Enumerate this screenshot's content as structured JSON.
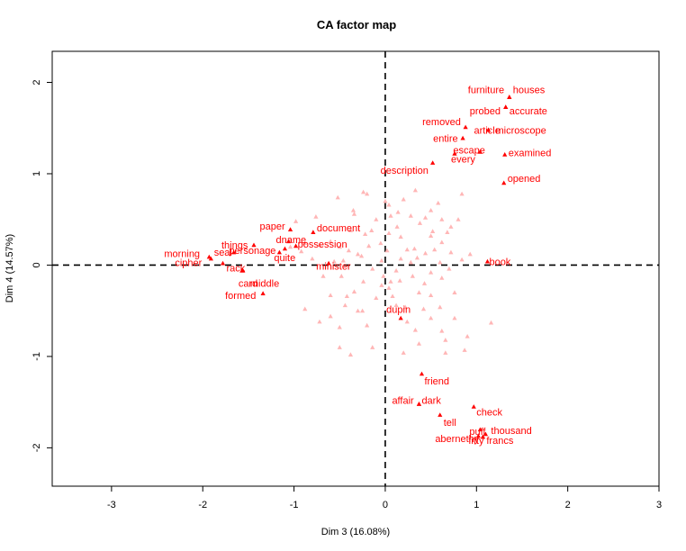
{
  "chart_data": {
    "type": "scatter",
    "title": "CA factor map",
    "xlabel": "Dim 3 (16.08%)",
    "ylabel": "Dim 4 (14.57%)",
    "xlim": [
      -3.65,
      3.0
    ],
    "ylim": [
      -2.42,
      2.34
    ],
    "xticks": [
      "-3",
      "-2",
      "-1",
      "0",
      "1",
      "2",
      "3"
    ],
    "xtick_values": [
      -3,
      -2,
      -1,
      0,
      1,
      2,
      3
    ],
    "yticks": [
      "-2",
      "-1",
      "0",
      "1",
      "2"
    ],
    "ytick_values": [
      -2,
      -1,
      0,
      1,
      2
    ],
    "reference_lines": {
      "x": 0,
      "y": 0,
      "style": "dashed"
    },
    "grid": false,
    "colors": {
      "labeled": "#ff0000",
      "unlabeled": "#ffb6b6",
      "axis": "#000000"
    },
    "marker": "triangle",
    "labeled_points": [
      {
        "label": "furniture",
        "x": 1.36,
        "y": 1.84
      },
      {
        "label": "houses",
        "x": 1.36,
        "y": 1.84
      },
      {
        "label": "probed",
        "x": 1.32,
        "y": 1.73
      },
      {
        "label": "accurate",
        "x": 1.32,
        "y": 1.73
      },
      {
        "label": "microscope",
        "x": 1.13,
        "y": 1.48
      },
      {
        "label": "removed",
        "x": 0.88,
        "y": 1.51
      },
      {
        "label": "article",
        "x": 1.13,
        "y": 1.48
      },
      {
        "label": "entire",
        "x": 0.85,
        "y": 1.39
      },
      {
        "label": "escape",
        "x": 1.04,
        "y": 1.24
      },
      {
        "label": "examined",
        "x": 1.31,
        "y": 1.21
      },
      {
        "label": "every",
        "x": 0.76,
        "y": 1.22
      },
      {
        "label": "description",
        "x": 0.52,
        "y": 1.12
      },
      {
        "label": "opened",
        "x": 1.3,
        "y": 0.9
      },
      {
        "label": "paper",
        "x": -1.04,
        "y": 0.39
      },
      {
        "label": "document",
        "x": -0.79,
        "y": 0.36
      },
      {
        "label": "things",
        "x": -1.44,
        "y": 0.22
      },
      {
        "label": "dname",
        "x": -1.06,
        "y": 0.26
      },
      {
        "label": "possession",
        "x": -0.98,
        "y": 0.21
      },
      {
        "label": "morning",
        "x": -1.93,
        "y": 0.09
      },
      {
        "label": "seal",
        "x": -1.66,
        "y": 0.14
      },
      {
        "label": "personage",
        "x": -1.1,
        "y": 0.18
      },
      {
        "label": "quite",
        "x": -1.16,
        "y": 0.14
      },
      {
        "label": "cipher",
        "x": -1.91,
        "y": 0.07
      },
      {
        "label": "rack",
        "x": -1.78,
        "y": 0.02
      },
      {
        "label": "minister",
        "x": -0.62,
        "y": 0.02
      },
      {
        "label": "card",
        "x": -1.57,
        "y": -0.06
      },
      {
        "label": "middle",
        "x": -1.56,
        "y": -0.06
      },
      {
        "label": "formed",
        "x": -1.34,
        "y": -0.31
      },
      {
        "label": "book",
        "x": 1.12,
        "y": 0.04
      },
      {
        "label": "dupin",
        "x": 0.17,
        "y": -0.58
      },
      {
        "label": "friend",
        "x": 0.4,
        "y": -1.19
      },
      {
        "label": "affair",
        "x": 0.37,
        "y": -1.52
      },
      {
        "label": "dark",
        "x": 0.37,
        "y": -1.52
      },
      {
        "label": "check",
        "x": 0.97,
        "y": -1.55
      },
      {
        "label": "tell",
        "x": 0.6,
        "y": -1.64
      },
      {
        "label": "puff",
        "x": 1.04,
        "y": -1.8
      },
      {
        "label": "thousand",
        "x": 1.1,
        "y": -1.85
      },
      {
        "label": "abernethy",
        "x": 1.02,
        "y": -1.87
      },
      {
        "label": "fifty",
        "x": 1.07,
        "y": -1.88
      },
      {
        "label": "francs",
        "x": 1.07,
        "y": -1.88
      }
    ],
    "unlabeled_points": [
      [
        -0.52,
        0.74
      ],
      [
        -0.24,
        0.8
      ],
      [
        -0.2,
        0.78
      ],
      [
        0.04,
        0.66
      ],
      [
        0.2,
        0.72
      ],
      [
        0.33,
        0.82
      ],
      [
        0.84,
        0.78
      ],
      [
        0.5,
        0.6
      ],
      [
        0.44,
        0.52
      ],
      [
        0.06,
        0.54
      ],
      [
        -0.1,
        0.5
      ],
      [
        -0.15,
        0.38
      ],
      [
        -0.98,
        0.48
      ],
      [
        -1.04,
        0.2
      ],
      [
        -0.76,
        0.53
      ],
      [
        -0.34,
        0.56
      ],
      [
        -0.22,
        0.34
      ],
      [
        0.38,
        0.46
      ],
      [
        0.62,
        0.5
      ],
      [
        0.72,
        0.42
      ],
      [
        0.62,
        0.25
      ],
      [
        0.68,
        0.36
      ],
      [
        0.8,
        0.5
      ],
      [
        -0.18,
        0.21
      ],
      [
        -0.05,
        0.24
      ],
      [
        -0.3,
        0.12
      ],
      [
        -0.88,
        0.24
      ],
      [
        -0.72,
        0.22
      ],
      [
        -0.5,
        0.2
      ],
      [
        -0.38,
        0.38
      ],
      [
        0.24,
        0.17
      ],
      [
        0.5,
        0.32
      ],
      [
        0.54,
        0.17
      ],
      [
        0.32,
        0.18
      ],
      [
        -0.6,
        0.26
      ],
      [
        -0.92,
        0.15
      ],
      [
        -0.8,
        0.07
      ],
      [
        0.44,
        0.13
      ],
      [
        0.72,
        0.14
      ],
      [
        0.93,
        0.12
      ],
      [
        0.35,
        0.08
      ],
      [
        0.6,
        0.03
      ],
      [
        0.7,
        -0.04
      ],
      [
        -0.04,
        0.05
      ],
      [
        0.02,
        0.16
      ],
      [
        0.17,
        0.31
      ],
      [
        0.13,
        0.42
      ],
      [
        0.04,
        -0.25
      ],
      [
        -0.24,
        -0.18
      ],
      [
        -0.34,
        -0.29
      ],
      [
        -0.48,
        -0.12
      ],
      [
        -0.6,
        -0.33
      ],
      [
        -0.42,
        -0.34
      ],
      [
        -0.04,
        -0.22
      ],
      [
        0.16,
        -0.17
      ],
      [
        0.37,
        -0.3
      ],
      [
        0.43,
        -0.2
      ],
      [
        0.5,
        -0.33
      ],
      [
        0.6,
        -0.46
      ],
      [
        0.42,
        -0.48
      ],
      [
        0.08,
        -0.34
      ],
      [
        0.12,
        -0.44
      ],
      [
        0.22,
        -0.46
      ],
      [
        0.24,
        -0.62
      ],
      [
        0.5,
        -0.58
      ],
      [
        -0.25,
        -0.5
      ],
      [
        -0.6,
        -0.56
      ],
      [
        -0.88,
        -0.48
      ],
      [
        -0.72,
        -0.62
      ],
      [
        -0.44,
        -0.44
      ],
      [
        -0.3,
        -0.5
      ],
      [
        -0.2,
        -0.66
      ],
      [
        0.33,
        -0.71
      ],
      [
        0.62,
        -0.72
      ],
      [
        0.66,
        -0.82
      ],
      [
        0.37,
        -0.86
      ],
      [
        0.66,
        -0.96
      ],
      [
        0.9,
        -0.78
      ],
      [
        1.16,
        -0.63
      ],
      [
        -0.38,
        -0.98
      ],
      [
        0.2,
        -0.96
      ],
      [
        0.87,
        -0.93
      ],
      [
        -0.14,
        -0.9
      ],
      [
        -0.5,
        -0.9
      ],
      [
        0.06,
        -0.18
      ],
      [
        -0.1,
        -0.36
      ],
      [
        -0.68,
        -0.12
      ],
      [
        0.62,
        -0.14
      ],
      [
        0.28,
        0.03
      ],
      [
        -0.46,
        0.05
      ],
      [
        -0.14,
        -0.04
      ],
      [
        0.17,
        0.07
      ],
      [
        0.76,
        -0.3
      ],
      [
        0.76,
        -0.58
      ],
      [
        -0.4,
        0.16
      ],
      [
        -0.56,
        0.04
      ],
      [
        0.04,
        0.35
      ],
      [
        0.52,
        0.37
      ],
      [
        -0.02,
        -0.12
      ],
      [
        0.3,
        -0.12
      ],
      [
        0.58,
        0.68
      ],
      [
        -0.35,
        0.6
      ],
      [
        0.0,
        0.7
      ],
      [
        -0.5,
        -0.68
      ],
      [
        0.14,
        0.58
      ],
      [
        0.28,
        0.54
      ],
      [
        0.5,
        -0.08
      ],
      [
        0.84,
        0.06
      ],
      [
        -0.26,
        0.1
      ],
      [
        0.12,
        -0.06
      ]
    ]
  }
}
